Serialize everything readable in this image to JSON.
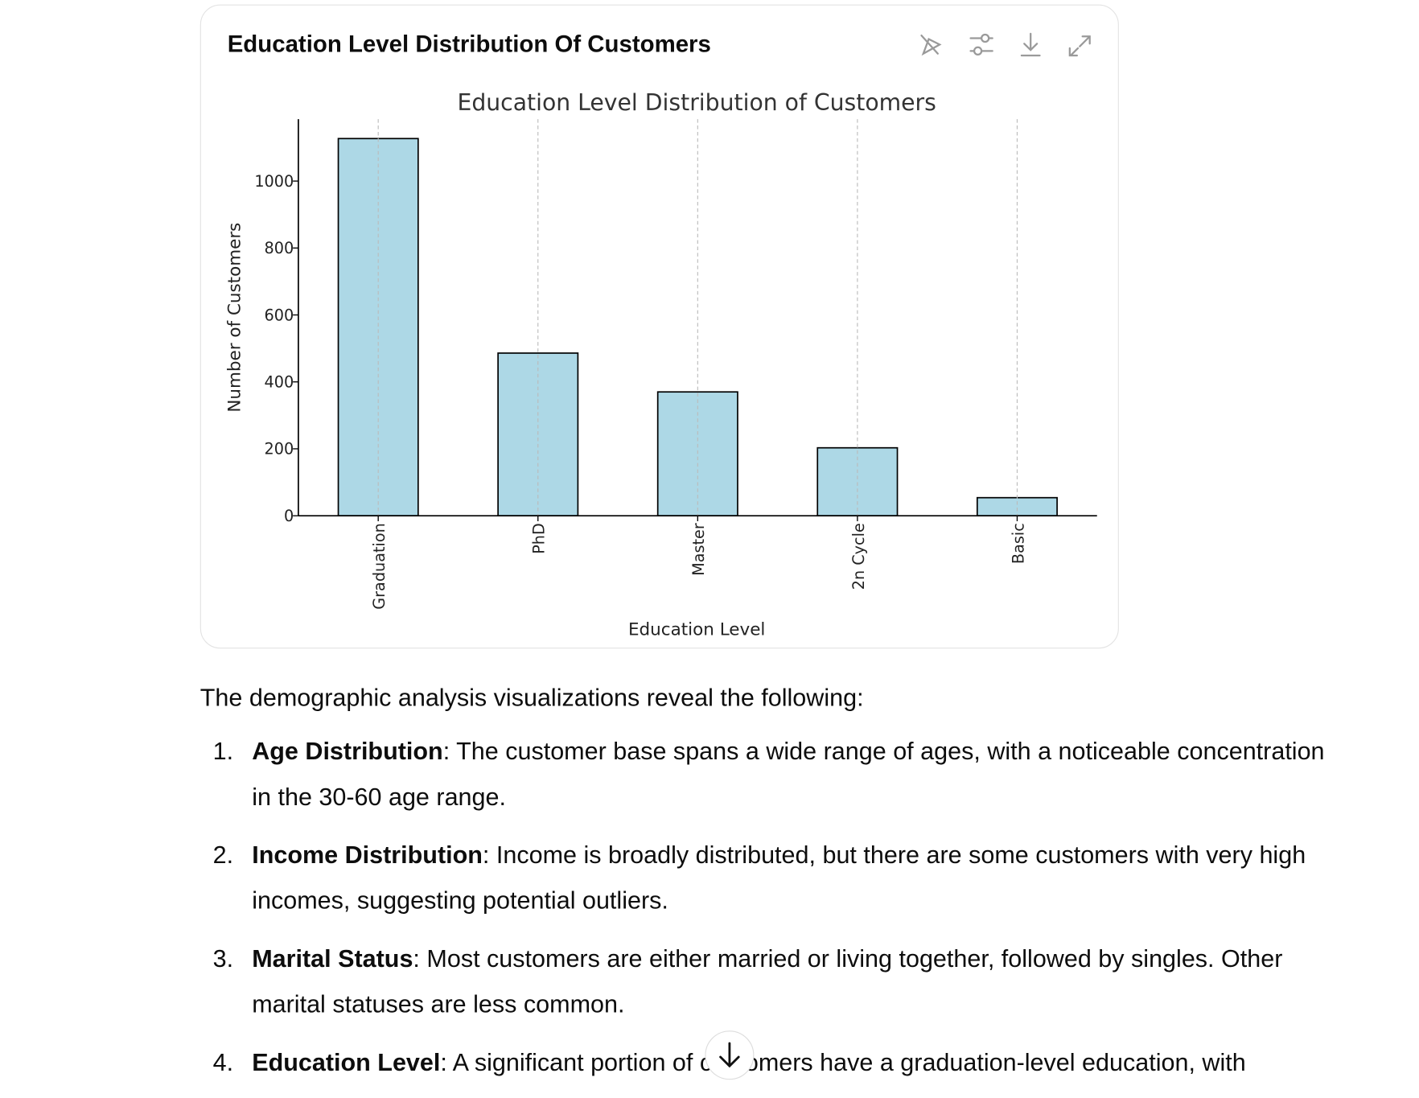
{
  "card_title": "Education Level Distribution Of Customers",
  "chart_data": {
    "type": "bar",
    "title": "Education Level Distribution of Customers",
    "x_label": "Education Level",
    "y_label": "Number of Customers",
    "categories": [
      "Graduation",
      "PhD",
      "Master",
      "2n Cycle",
      "Basic"
    ],
    "values": [
      1127,
      486,
      370,
      203,
      54
    ],
    "color": "#add8e6",
    "ylim": [
      0,
      1185
    ],
    "yticks": [
      0,
      200,
      400,
      600,
      800,
      1000
    ],
    "grid": "x"
  },
  "intro": "The demographic analysis visualizations reveal the following:",
  "list": [
    {
      "number": "1.",
      "term": "Age Distribution",
      "text": ": The customer base spans a wide range of ages, with a noticeable concentration in the 30-60 age range."
    },
    {
      "number": "2.",
      "term": "Income Distribution",
      "text": ": Income is broadly distributed, but there are some customers with very high incomes, suggesting potential outliers."
    },
    {
      "number": "3.",
      "term": "Marital Status",
      "text": ": Most customers are either married or living together, followed by singles. Other marital statuses are less common."
    },
    {
      "number": "4.",
      "term": "Education Level",
      "text": ": A significant portion of customers have a graduation-level education, with"
    }
  ]
}
